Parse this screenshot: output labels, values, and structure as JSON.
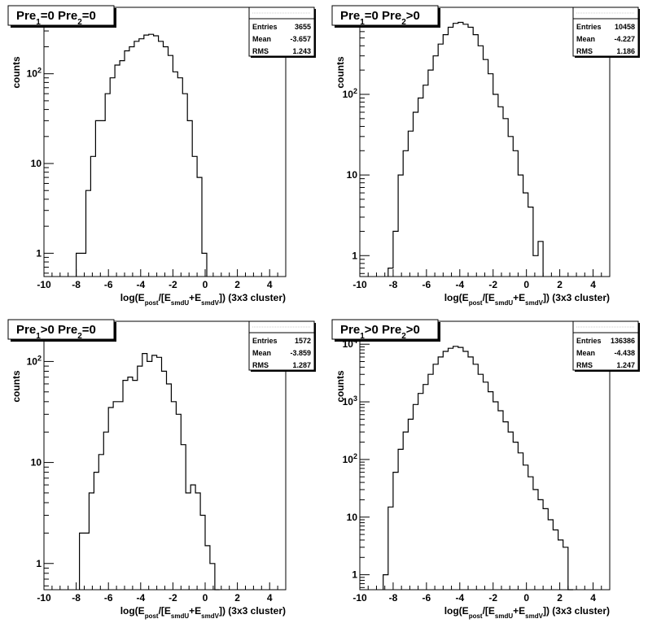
{
  "panels": [
    {
      "title_html": "Pre<tspan baseline-shift='sub' font-size='10'>1</tspan>=0  Pre<tspan baseline-shift='sub' font-size='10'>2</tspan>=0",
      "title_text": "Pre1=0 Pre2=0",
      "stats": {
        "entries_label": "Entries",
        "entries": "3655",
        "mean_label": "Mean",
        "mean": "-3.657",
        "rms_label": "RMS",
        "rms": "1.243"
      }
    },
    {
      "title_html": "Pre<tspan baseline-shift='sub' font-size='10'>1</tspan>=0  Pre<tspan baseline-shift='sub' font-size='10'>2</tspan>&gt;0",
      "title_text": "Pre1=0 Pre2>0",
      "stats": {
        "entries_label": "Entries",
        "entries": "10458",
        "mean_label": "Mean",
        "mean": "-4.227",
        "rms_label": "RMS",
        "rms": "1.186"
      }
    },
    {
      "title_html": "Pre<tspan baseline-shift='sub' font-size='10'>1</tspan>&gt;0  Pre<tspan baseline-shift='sub' font-size='10'>2</tspan>=0",
      "title_text": "Pre1>0 Pre2=0",
      "stats": {
        "entries_label": "Entries",
        "entries": "1572",
        "mean_label": "Mean",
        "mean": "-3.859",
        "rms_label": "RMS",
        "rms": "1.287"
      }
    },
    {
      "title_html": "Pre<tspan baseline-shift='sub' font-size='10'>1</tspan>&gt;0  Pre<tspan baseline-shift='sub' font-size='10'>2</tspan>&gt;0",
      "title_text": "Pre1>0 Pre2>0",
      "stats": {
        "entries_label": "Entries",
        "entries": "136386",
        "mean_label": "Mean",
        "mean": "-4.438",
        "rms_label": "RMS",
        "rms": "1.247"
      }
    }
  ],
  "chart_data": [
    {
      "type": "histogram",
      "title": "Pre1=0 Pre2=0",
      "xlabel": "log(Epost/[EsmdU+EsmdV]) (3x3 cluster)",
      "ylabel": "counts",
      "xlim": [
        -10,
        5
      ],
      "ylog": true,
      "ylim": [
        0.55,
        550
      ],
      "xticks": [
        "-10",
        "-8",
        "-6",
        "-4",
        "-2",
        "0",
        "2",
        "4"
      ],
      "yticks": [
        {
          "v": 1,
          "label": "1"
        },
        {
          "v": 10,
          "label": "10"
        },
        {
          "v": 100,
          "label": "10<tspan baseline-shift='super' font-size='9'>2</tspan>"
        }
      ],
      "bin_width": 0.3,
      "bins": [
        [
          -8.0,
          1
        ],
        [
          -7.7,
          1
        ],
        [
          -7.4,
          5
        ],
        [
          -7.1,
          12
        ],
        [
          -6.8,
          30
        ],
        [
          -6.5,
          30
        ],
        [
          -6.2,
          60
        ],
        [
          -5.9,
          90
        ],
        [
          -5.6,
          125
        ],
        [
          -5.3,
          140
        ],
        [
          -5.0,
          180
        ],
        [
          -4.7,
          200
        ],
        [
          -4.4,
          230
        ],
        [
          -4.1,
          245
        ],
        [
          -3.8,
          270
        ],
        [
          -3.5,
          275
        ],
        [
          -3.2,
          265
        ],
        [
          -2.9,
          230
        ],
        [
          -2.6,
          200
        ],
        [
          -2.3,
          160
        ],
        [
          -2.0,
          105
        ],
        [
          -1.7,
          90
        ],
        [
          -1.4,
          60
        ],
        [
          -1.1,
          30
        ],
        [
          -0.8,
          12
        ],
        [
          -0.5,
          7
        ],
        [
          -0.2,
          1
        ]
      ]
    },
    {
      "type": "histogram",
      "title": "Pre1=0 Pre2>0",
      "xlabel": "log(Epost/[EsmdU+EsmdV]) (3x3 cluster)",
      "ylabel": "counts",
      "xlim": [
        -10,
        5
      ],
      "ylog": true,
      "ylim": [
        0.55,
        1200
      ],
      "xticks": [
        "-10",
        "-8",
        "-6",
        "-4",
        "-2",
        "0",
        "2",
        "4"
      ],
      "yticks": [
        {
          "v": 1,
          "label": "1"
        },
        {
          "v": 10,
          "label": "10"
        },
        {
          "v": 100,
          "label": "10<tspan baseline-shift='super' font-size='9'>2</tspan>"
        },
        {
          "v": 1000,
          "label": "10<tspan baseline-shift='super' font-size='9'>3</tspan>"
        }
      ],
      "bin_width": 0.3,
      "bins": [
        [
          -8.3,
          0.7
        ],
        [
          -8.0,
          2
        ],
        [
          -7.7,
          10
        ],
        [
          -7.4,
          20
        ],
        [
          -7.1,
          35
        ],
        [
          -6.8,
          60
        ],
        [
          -6.5,
          90
        ],
        [
          -6.2,
          130
        ],
        [
          -5.9,
          200
        ],
        [
          -5.6,
          300
        ],
        [
          -5.3,
          420
        ],
        [
          -5.0,
          550
        ],
        [
          -4.7,
          680
        ],
        [
          -4.4,
          760
        ],
        [
          -4.1,
          780
        ],
        [
          -3.8,
          740
        ],
        [
          -3.5,
          680
        ],
        [
          -3.2,
          550
        ],
        [
          -2.9,
          400
        ],
        [
          -2.6,
          270
        ],
        [
          -2.3,
          180
        ],
        [
          -2.0,
          100
        ],
        [
          -1.7,
          70
        ],
        [
          -1.4,
          50
        ],
        [
          -1.1,
          30
        ],
        [
          -0.8,
          20
        ],
        [
          -0.5,
          10
        ],
        [
          -0.2,
          6
        ],
        [
          0.1,
          4
        ],
        [
          0.4,
          1
        ],
        [
          0.7,
          1.5
        ]
      ]
    },
    {
      "type": "histogram",
      "title": "Pre1>0 Pre2=0",
      "xlabel": "log(Epost/[EsmdU+EsmdV]) (3x3 cluster)",
      "ylabel": "counts",
      "xlim": [
        -10,
        5
      ],
      "ylog": true,
      "ylim": [
        0.55,
        250
      ],
      "xticks": [
        "-10",
        "-8",
        "-6",
        "-4",
        "-2",
        "0",
        "2",
        "4"
      ],
      "yticks": [
        {
          "v": 1,
          "label": "1"
        },
        {
          "v": 10,
          "label": "10"
        },
        {
          "v": 100,
          "label": "10<tspan baseline-shift='super' font-size='9'>2</tspan>"
        }
      ],
      "bin_width": 0.3,
      "bins": [
        [
          -7.8,
          2
        ],
        [
          -7.5,
          2
        ],
        [
          -7.2,
          5
        ],
        [
          -6.9,
          8
        ],
        [
          -6.6,
          12
        ],
        [
          -6.3,
          20
        ],
        [
          -6.0,
          35
        ],
        [
          -5.7,
          40
        ],
        [
          -5.4,
          40
        ],
        [
          -5.1,
          65
        ],
        [
          -4.8,
          70
        ],
        [
          -4.5,
          65
        ],
        [
          -4.2,
          90
        ],
        [
          -3.9,
          120
        ],
        [
          -3.6,
          100
        ],
        [
          -3.3,
          115
        ],
        [
          -3.0,
          110
        ],
        [
          -2.7,
          80
        ],
        [
          -2.4,
          60
        ],
        [
          -2.1,
          40
        ],
        [
          -1.8,
          30
        ],
        [
          -1.5,
          15
        ],
        [
          -1.2,
          5
        ],
        [
          -0.9,
          6
        ],
        [
          -0.6,
          5
        ],
        [
          -0.3,
          3
        ],
        [
          0.0,
          1.5
        ],
        [
          0.3,
          1
        ],
        [
          0.6,
          0.5
        ]
      ]
    },
    {
      "type": "histogram",
      "title": "Pre1>0 Pre2>0",
      "xlabel": "log(Epost/[EsmdU+EsmdV]) (3x3 cluster)",
      "ylabel": "counts",
      "xlim": [
        -10,
        5
      ],
      "ylog": true,
      "ylim": [
        0.55,
        25000
      ],
      "xticks": [
        "-10",
        "-8",
        "-6",
        "-4",
        "-2",
        "0",
        "2",
        "4"
      ],
      "yticks": [
        {
          "v": 1,
          "label": "1"
        },
        {
          "v": 10,
          "label": "10"
        },
        {
          "v": 100,
          "label": "10<tspan baseline-shift='super' font-size='9'>2</tspan>"
        },
        {
          "v": 1000,
          "label": "10<tspan baseline-shift='super' font-size='9'>3</tspan>"
        },
        {
          "v": 10000,
          "label": "10<tspan baseline-shift='super' font-size='9'>4</tspan>"
        }
      ],
      "bin_width": 0.3,
      "bins": [
        [
          -8.6,
          1
        ],
        [
          -8.3,
          15
        ],
        [
          -8.0,
          60
        ],
        [
          -7.7,
          150
        ],
        [
          -7.4,
          300
        ],
        [
          -7.1,
          500
        ],
        [
          -6.8,
          900
        ],
        [
          -6.5,
          1400
        ],
        [
          -6.2,
          2000
        ],
        [
          -5.9,
          3000
        ],
        [
          -5.6,
          4500
        ],
        [
          -5.3,
          6000
        ],
        [
          -5.0,
          7500
        ],
        [
          -4.7,
          8500
        ],
        [
          -4.4,
          9200
        ],
        [
          -4.1,
          8800
        ],
        [
          -3.8,
          7500
        ],
        [
          -3.5,
          6000
        ],
        [
          -3.2,
          4500
        ],
        [
          -2.9,
          3000
        ],
        [
          -2.6,
          2200
        ],
        [
          -2.3,
          1500
        ],
        [
          -2.0,
          1000
        ],
        [
          -1.7,
          700
        ],
        [
          -1.4,
          450
        ],
        [
          -1.1,
          300
        ],
        [
          -0.8,
          200
        ],
        [
          -0.5,
          130
        ],
        [
          -0.2,
          80
        ],
        [
          0.1,
          50
        ],
        [
          0.4,
          30
        ],
        [
          0.7,
          20
        ],
        [
          1.0,
          14
        ],
        [
          1.3,
          9
        ],
        [
          1.6,
          6
        ],
        [
          1.9,
          4
        ],
        [
          2.2,
          3
        ],
        [
          2.5,
          0.5
        ]
      ]
    }
  ]
}
